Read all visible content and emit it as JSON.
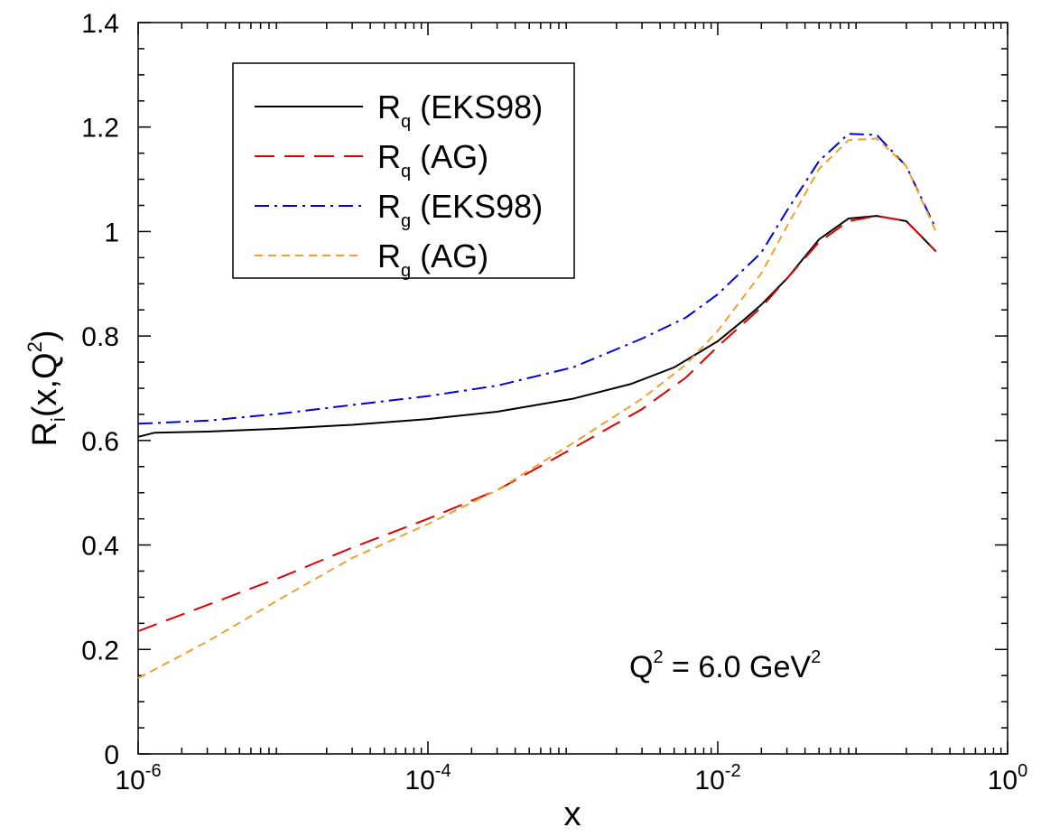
{
  "chart_data": {
    "type": "line",
    "x_scale": "log",
    "xlim": [
      1e-06,
      1
    ],
    "ylim": [
      0,
      1.4
    ],
    "grid": false,
    "xlabel": "x",
    "ylabel": {
      "base": "R",
      "sub": "i",
      "rest": "(x,Q",
      "sup": "2",
      "close": ")"
    },
    "x_ticks": [
      {
        "value": 1e-06,
        "base": "10",
        "exp": "-6"
      },
      {
        "value": 0.0001,
        "base": "10",
        "exp": "-4"
      },
      {
        "value": 0.01,
        "base": "10",
        "exp": "-2"
      },
      {
        "value": 1,
        "base": "10",
        "exp": "0"
      }
    ],
    "y_ticks": [
      {
        "value": 0,
        "label": "0"
      },
      {
        "value": 0.2,
        "label": "0.2"
      },
      {
        "value": 0.4,
        "label": "0.4"
      },
      {
        "value": 0.6,
        "label": "0.6"
      },
      {
        "value": 0.8,
        "label": "0.8"
      },
      {
        "value": 1.0,
        "label": "1"
      },
      {
        "value": 1.2,
        "label": "1.2"
      },
      {
        "value": 1.4,
        "label": "1.4"
      }
    ],
    "legend_position": "top-left",
    "annotation": {
      "q": "Q",
      "sup1": "2",
      "mid": " = 6.0 GeV",
      "sup2": "2"
    },
    "series": [
      {
        "name": {
          "base": "R",
          "sub": "q",
          "rest": " (EKS98)"
        },
        "color": "#000000",
        "dash": "solid",
        "points": [
          [
            1e-06,
            0.607
          ],
          [
            1.3e-06,
            0.615
          ],
          [
            3e-06,
            0.617
          ],
          [
            1e-05,
            0.623
          ],
          [
            3e-05,
            0.63
          ],
          [
            0.0001,
            0.641
          ],
          [
            0.0003,
            0.655
          ],
          [
            0.001,
            0.68
          ],
          [
            0.0025,
            0.708
          ],
          [
            0.005,
            0.74
          ],
          [
            0.01,
            0.79
          ],
          [
            0.015,
            0.83
          ],
          [
            0.02,
            0.86
          ],
          [
            0.03,
            0.91
          ],
          [
            0.05,
            0.985
          ],
          [
            0.08,
            1.025
          ],
          [
            0.125,
            1.03
          ],
          [
            0.2,
            1.02
          ],
          [
            0.32,
            0.962
          ]
        ]
      },
      {
        "name": {
          "base": "R",
          "sub": "q",
          "rest": " (AG)"
        },
        "color": "#e00000",
        "dash": "long",
        "points": [
          [
            1e-06,
            0.235
          ],
          [
            3e-06,
            0.285
          ],
          [
            1e-05,
            0.34
          ],
          [
            3e-05,
            0.395
          ],
          [
            0.0001,
            0.45
          ],
          [
            0.0003,
            0.505
          ],
          [
            0.001,
            0.585
          ],
          [
            0.003,
            0.66
          ],
          [
            0.006,
            0.72
          ],
          [
            0.01,
            0.78
          ],
          [
            0.02,
            0.855
          ],
          [
            0.03,
            0.91
          ],
          [
            0.05,
            0.98
          ],
          [
            0.08,
            1.02
          ],
          [
            0.125,
            1.03
          ],
          [
            0.2,
            1.02
          ],
          [
            0.32,
            0.962
          ]
        ]
      },
      {
        "name": {
          "base": "R",
          "sub": "g",
          "rest": " (EKS98)"
        },
        "color": "#0000e0",
        "dash": "dashdot",
        "points": [
          [
            1e-06,
            0.632
          ],
          [
            3e-06,
            0.638
          ],
          [
            1e-05,
            0.652
          ],
          [
            3e-05,
            0.668
          ],
          [
            0.0001,
            0.685
          ],
          [
            0.0003,
            0.705
          ],
          [
            0.001,
            0.74
          ],
          [
            0.003,
            0.795
          ],
          [
            0.006,
            0.835
          ],
          [
            0.01,
            0.88
          ],
          [
            0.02,
            0.96
          ],
          [
            0.03,
            1.04
          ],
          [
            0.05,
            1.135
          ],
          [
            0.08,
            1.187
          ],
          [
            0.125,
            1.185
          ],
          [
            0.2,
            1.125
          ],
          [
            0.32,
            1.005
          ]
        ]
      },
      {
        "name": {
          "base": "R",
          "sub": "g",
          "rest": " (AG)"
        },
        "color": "#f0a030",
        "dash": "short",
        "points": [
          [
            1e-06,
            0.145
          ],
          [
            3e-06,
            0.215
          ],
          [
            1e-05,
            0.3
          ],
          [
            3e-05,
            0.375
          ],
          [
            0.0001,
            0.44
          ],
          [
            0.0003,
            0.505
          ],
          [
            0.001,
            0.595
          ],
          [
            0.003,
            0.68
          ],
          [
            0.006,
            0.745
          ],
          [
            0.01,
            0.81
          ],
          [
            0.02,
            0.92
          ],
          [
            0.03,
            1.01
          ],
          [
            0.05,
            1.12
          ],
          [
            0.08,
            1.175
          ],
          [
            0.125,
            1.178
          ],
          [
            0.2,
            1.125
          ],
          [
            0.32,
            1.0
          ]
        ]
      }
    ]
  }
}
